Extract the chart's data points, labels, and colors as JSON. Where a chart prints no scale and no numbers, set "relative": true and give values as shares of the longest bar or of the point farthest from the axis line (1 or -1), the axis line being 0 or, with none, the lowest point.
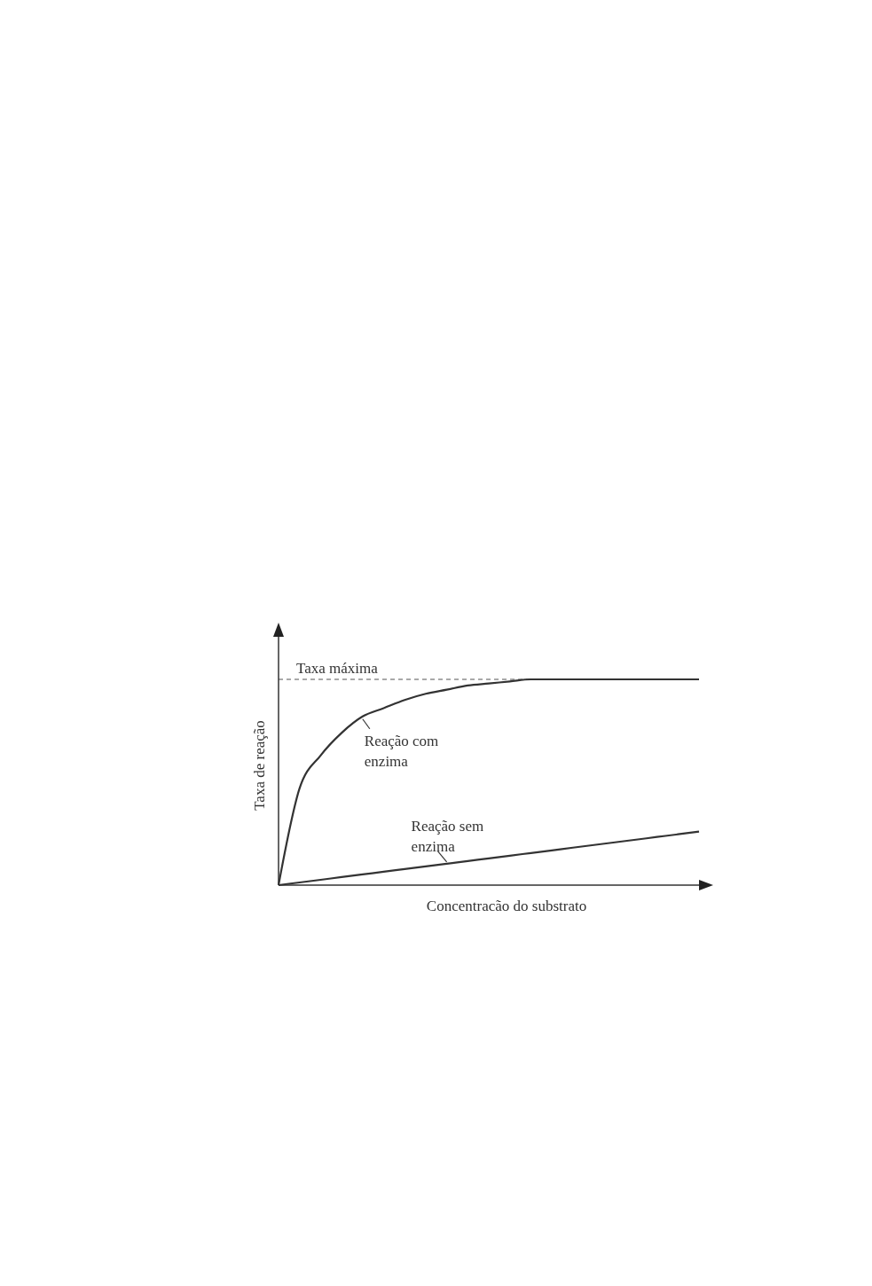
{
  "chart_data": {
    "type": "line",
    "relative": true,
    "xlabel": "Concentracão do substrato",
    "ylabel": "Taxa de reação",
    "categories": [
      null,
      null,
      null,
      null,
      null,
      null,
      null,
      null,
      null,
      null,
      null,
      null,
      null,
      null,
      null,
      null,
      null,
      null,
      null,
      null,
      null
    ],
    "series": [
      {
        "name": "Reação com enzima",
        "color": "#333333",
        "values": [
          0,
          0.47,
          0.63,
          0.74,
          0.82,
          0.86,
          0.9,
          0.93,
          0.95,
          0.97,
          0.98,
          0.99,
          1,
          1,
          1,
          1,
          1,
          1,
          1,
          1,
          1
        ]
      },
      {
        "name": "Reação sem enzima",
        "color": "#333333",
        "values": [
          0,
          0.013,
          0.026,
          0.039,
          0.052,
          0.065,
          0.078,
          0.091,
          0.104,
          0.117,
          0.13,
          0.143,
          0.156,
          0.169,
          0.182,
          0.195,
          0.208,
          0.221,
          0.234,
          0.247,
          0.26
        ]
      }
    ],
    "ref_lines": [
      {
        "axis": "y",
        "value": 1,
        "label": "Taxa máxima",
        "line_style": "dashed",
        "color": "#555555"
      }
    ]
  }
}
